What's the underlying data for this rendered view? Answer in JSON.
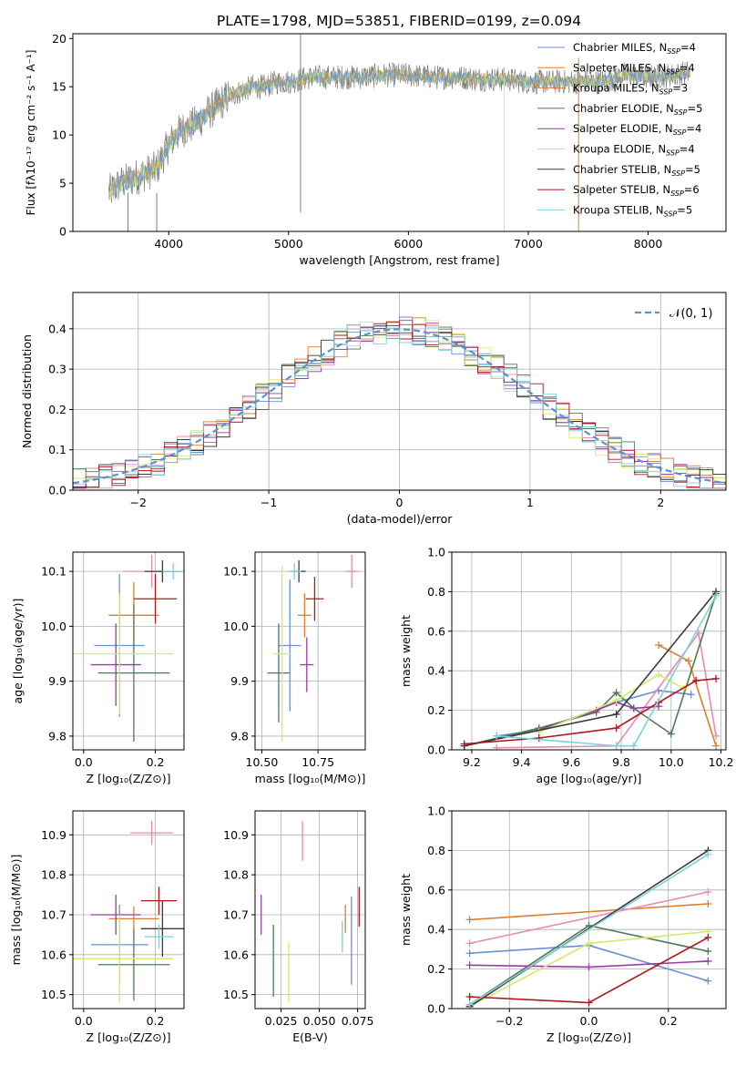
{
  "figure_title": "PLATE=1798, MJD=53851, FIBERID=0199, z=0.094",
  "colors": {
    "chabrier_miles": "#6a8fd4",
    "salpeter_miles": "#de7f2e",
    "kroupa_miles": "#e07a3f",
    "chabrier_elodie": "#4f7a55",
    "salpeter_elodie": "#9b3aa8",
    "kroupa_elodie": "#d3ea6a",
    "chabrier_stelib": "#3a3a3a",
    "salpeter_stelib": "#b0161c",
    "kroupa_stelib": "#7fd0db",
    "pink": "#e88bb5",
    "gaussian": "#5b8fd8",
    "grid": "#b0b0b0"
  },
  "chart_data": [
    {
      "id": "spectrum",
      "type": "line",
      "xlabel": "wavelength [Angstrom, rest frame]",
      "ylabel": "Flux [fλ10⁻¹⁷ erg cm⁻² s⁻¹ A⁻¹]",
      "xlim": [
        3200,
        8650
      ],
      "ylim": [
        0,
        20.5
      ],
      "xticks": [
        4000,
        5000,
        6000,
        7000,
        8000
      ],
      "yticks": [
        0,
        5,
        10,
        15,
        20
      ],
      "grid": false,
      "legend_position": "top-right",
      "legend": [
        {
          "label": "Chabrier MILES, N",
          "sub": "SSP",
          "tail": "=4",
          "color": "#6a8fd4"
        },
        {
          "label": "Salpeter MILES, N",
          "sub": "SSP",
          "tail": "=4",
          "color": "#de7f2e"
        },
        {
          "label": "Kroupa MILES, N",
          "sub": "SSP",
          "tail": "=3",
          "color": "#e07a3f"
        },
        {
          "label": "Chabrier ELODIE, N",
          "sub": "SSP",
          "tail": "=5",
          "color": "#4f7a55"
        },
        {
          "label": "Salpeter ELODIE, N",
          "sub": "SSP",
          "tail": "=4",
          "color": "#9b3aa8"
        },
        {
          "label": "Kroupa ELODIE, N",
          "sub": "SSP",
          "tail": "=4",
          "color": "#d3ea6a"
        },
        {
          "label": "Chabrier STELIB, N",
          "sub": "SSP",
          "tail": "=5",
          "color": "#3a3a3a"
        },
        {
          "label": "Salpeter STELIB, N",
          "sub": "SSP",
          "tail": "=6",
          "color": "#b0161c"
        },
        {
          "label": "Kroupa STELIB, N",
          "sub": "SSP",
          "tail": "=5",
          "color": "#7fd0db"
        }
      ],
      "continuum": {
        "x": [
          3500,
          3600,
          3700,
          3800,
          3900,
          4000,
          4100,
          4200,
          4300,
          4400,
          4500,
          4600,
          4700,
          4800,
          4900,
          5000,
          5200,
          5400,
          5600,
          5800,
          6000,
          6200,
          6400,
          6600,
          6800,
          7000,
          7200,
          7400,
          7600,
          7800,
          8000,
          8200,
          8350
        ],
        "y": [
          4,
          5,
          5.5,
          6,
          6.5,
          9,
          10.5,
          11,
          12,
          13,
          14,
          14.5,
          15,
          15,
          15.5,
          15.5,
          16,
          16,
          16,
          16.2,
          16.2,
          16,
          16,
          15.8,
          15.8,
          15.5,
          15.5,
          15.5,
          15.5,
          16.2,
          16,
          16.2,
          16.5
        ]
      },
      "spikes": [
        {
          "x": 5100,
          "y0": 2,
          "y1": 20.5
        },
        {
          "x": 3660,
          "y0": 0,
          "y1": 4
        },
        {
          "x": 3900,
          "y0": 0,
          "y1": 4
        },
        {
          "x": 6800,
          "y0": 0,
          "y1": 16
        },
        {
          "x": 7420,
          "y0": 0,
          "y1": 18
        }
      ]
    },
    {
      "id": "residuals",
      "type": "histogram",
      "xlabel": "(data-model)/error",
      "ylabel": "Normed distribution",
      "xlim": [
        -2.5,
        2.5
      ],
      "ylim": [
        0,
        0.49
      ],
      "xticks": [
        -2,
        -1,
        0,
        1,
        2
      ],
      "yticks": [
        0.0,
        0.1,
        0.2,
        0.3,
        0.4
      ],
      "grid": true,
      "legend_position": "top-right",
      "gaussian_label": "𝒩(0, 1)",
      "bin_width": 0.1
    },
    {
      "id": "age_vs_Z",
      "type": "errorbar",
      "xlabel": "Z [log₁₀(Z/Z⊙)]",
      "ylabel": "age  [log₁₀(age/yr)]",
      "xlim": [
        -0.03,
        0.28
      ],
      "ylim": [
        9.775,
        10.135
      ],
      "xticks": [
        0.0,
        0.2
      ],
      "yticks": [
        9.8,
        9.9,
        10.0,
        10.1
      ],
      "grid": true,
      "points": [
        {
          "x": 0.1,
          "xerr": 0.07,
          "y": 9.965,
          "yerr": 0.13,
          "color": "#6a8fd4"
        },
        {
          "x": 0.14,
          "xerr": 0.07,
          "y": 10.02,
          "yerr": 0.06,
          "color": "#de7f2e"
        },
        {
          "x": 0.19,
          "xerr": 0.08,
          "y": 10.1,
          "yerr": 0.03,
          "color": "#e88bb5"
        },
        {
          "x": 0.14,
          "xerr": 0.1,
          "y": 9.915,
          "yerr": 0.125,
          "color": "#4f7a55"
        },
        {
          "x": 0.09,
          "xerr": 0.07,
          "y": 9.93,
          "yerr": 0.075,
          "color": "#9b3aa8"
        },
        {
          "x": 0.1,
          "xerr": 0.15,
          "y": 9.95,
          "yerr": 0.11,
          "color": "#d3ea6a"
        },
        {
          "x": 0.22,
          "xerr": 0.05,
          "y": 10.1,
          "yerr": 0.02,
          "color": "#3a3a3a"
        },
        {
          "x": 0.2,
          "xerr": 0.06,
          "y": 10.05,
          "yerr": 0.045,
          "color": "#b0161c"
        },
        {
          "x": 0.25,
          "xerr": 0.03,
          "y": 10.1,
          "yerr": 0.015,
          "color": "#7fd0db"
        }
      ]
    },
    {
      "id": "age_vs_mass",
      "type": "errorbar",
      "xlabel": "mass [log₁₀(M/M⊙)]",
      "ylabel": "",
      "xlim": [
        10.47,
        10.96
      ],
      "ylim": [
        9.775,
        10.135
      ],
      "xticks": [
        10.5,
        10.75
      ],
      "yticks": [
        9.8,
        9.9,
        10.0,
        10.1
      ],
      "grid": true,
      "points": [
        {
          "x": 10.625,
          "xerr": 0.05,
          "y": 9.965,
          "yerr": 0.12,
          "color": "#6a8fd4"
        },
        {
          "x": 10.69,
          "xerr": 0.03,
          "y": 10.02,
          "yerr": 0.04,
          "color": "#de7f2e"
        },
        {
          "x": 10.9,
          "xerr": 0.03,
          "y": 10.1,
          "yerr": 0.03,
          "color": "#e88bb5"
        },
        {
          "x": 10.575,
          "xerr": 0.05,
          "y": 9.915,
          "yerr": 0.09,
          "color": "#4f7a55"
        },
        {
          "x": 10.7,
          "xerr": 0.03,
          "y": 9.93,
          "yerr": 0.05,
          "color": "#9b3aa8"
        },
        {
          "x": 10.59,
          "xerr": 0.04,
          "y": 9.95,
          "yerr": 0.16,
          "color": "#d3ea6a"
        },
        {
          "x": 10.665,
          "xerr": 0.03,
          "y": 10.1,
          "yerr": 0.02,
          "color": "#3a3a3a"
        },
        {
          "x": 10.735,
          "xerr": 0.04,
          "y": 10.05,
          "yerr": 0.04,
          "color": "#b0161c"
        },
        {
          "x": 10.645,
          "xerr": 0.03,
          "y": 10.1,
          "yerr": 0.015,
          "color": "#7fd0db"
        }
      ]
    },
    {
      "id": "weight_vs_age",
      "type": "line",
      "xlabel": "age  [log₁₀(age/yr)]",
      "ylabel": "mass weight",
      "xlim": [
        9.12,
        10.22
      ],
      "ylim": [
        0,
        1.0
      ],
      "xticks": [
        9.2,
        9.4,
        9.6,
        9.8,
        10.0,
        10.2
      ],
      "yticks": [
        0.0,
        0.2,
        0.4,
        0.6,
        0.8,
        1.0
      ],
      "grid": true,
      "series": [
        {
          "color": "#6a8fd4",
          "x": [
            9.3,
            9.47,
            9.78,
            9.95,
            10.08
          ],
          "y": [
            0.07,
            0.1,
            0.24,
            0.3,
            0.28
          ]
        },
        {
          "color": "#de7f2e",
          "x": [
            9.95,
            10.07,
            10.18
          ],
          "y": [
            0.53,
            0.45,
            0.02
          ]
        },
        {
          "color": "#e88bb5",
          "x": [
            9.3,
            9.78,
            10.11,
            10.18
          ],
          "y": [
            0.01,
            0.02,
            0.59,
            0.07
          ]
        },
        {
          "color": "#4f7a55",
          "x": [
            9.17,
            9.47,
            9.7,
            9.78,
            9.85,
            10.0,
            10.18
          ],
          "y": [
            0.02,
            0.11,
            0.19,
            0.29,
            0.21,
            0.08,
            0.79
          ]
        },
        {
          "color": "#9b3aa8",
          "x": [
            9.47,
            9.7,
            9.78,
            9.85,
            9.95
          ],
          "y": [
            0.1,
            0.2,
            0.24,
            0.21,
            0.22
          ]
        },
        {
          "color": "#d3ea6a",
          "x": [
            9.47,
            9.78,
            9.95,
            10.05
          ],
          "y": [
            0.09,
            0.25,
            0.38,
            0.31
          ]
        },
        {
          "color": "#3a3a3a",
          "x": [
            9.17,
            9.78,
            10.18
          ],
          "y": [
            0.02,
            0.18,
            0.8
          ]
        },
        {
          "color": "#b0161c",
          "x": [
            9.17,
            9.47,
            9.78,
            9.95,
            10.1,
            10.18
          ],
          "y": [
            0.03,
            0.06,
            0.11,
            0.24,
            0.35,
            0.36
          ]
        },
        {
          "color": "#7fd0db",
          "x": [
            9.3,
            9.78,
            9.85,
            10.18
          ],
          "y": [
            0.07,
            0.02,
            0.02,
            0.78
          ]
        }
      ]
    },
    {
      "id": "mass_vs_Z",
      "type": "errorbar",
      "xlabel": "Z [log₁₀(Z/Z⊙)]",
      "ylabel": "mass [log₁₀(M/M⊙)]",
      "xlim": [
        -0.03,
        0.28
      ],
      "ylim": [
        10.465,
        10.96
      ],
      "xticks": [
        0.0,
        0.2
      ],
      "yticks": [
        10.5,
        10.6,
        10.7,
        10.8,
        10.9
      ],
      "grid": true,
      "points": [
        {
          "x": 0.1,
          "xerr": 0.08,
          "y": 10.625,
          "yerr": 0.1,
          "color": "#6a8fd4"
        },
        {
          "x": 0.14,
          "xerr": 0.07,
          "y": 10.69,
          "yerr": 0.03,
          "color": "#de7f2e"
        },
        {
          "x": 0.19,
          "xerr": 0.06,
          "y": 10.905,
          "yerr": 0.03,
          "color": "#e88bb5"
        },
        {
          "x": 0.14,
          "xerr": 0.1,
          "y": 10.575,
          "yerr": 0.09,
          "color": "#4f7a55"
        },
        {
          "x": 0.09,
          "xerr": 0.07,
          "y": 10.7,
          "yerr": 0.05,
          "color": "#9b3aa8"
        },
        {
          "x": 0.1,
          "xerr": 0.15,
          "y": 10.59,
          "yerr": 0.11,
          "color": "#d3ea6a"
        },
        {
          "x": 0.22,
          "xerr": 0.06,
          "y": 10.665,
          "yerr": 0.07,
          "color": "#3a3a3a"
        },
        {
          "x": 0.21,
          "xerr": 0.05,
          "y": 10.735,
          "yerr": 0.035,
          "color": "#b0161c"
        },
        {
          "x": 0.21,
          "xerr": 0.04,
          "y": 10.645,
          "yerr": 0.03,
          "color": "#7fd0db"
        }
      ]
    },
    {
      "id": "mass_vs_ebv",
      "type": "errorbar",
      "xlabel": "E(B-V)",
      "ylabel": "",
      "xlim": [
        0.008,
        0.08
      ],
      "ylim": [
        10.465,
        10.96
      ],
      "xticks": [
        0.025,
        0.05,
        0.075
      ],
      "yticks": [
        10.5,
        10.6,
        10.7,
        10.8,
        10.9
      ],
      "grid": true,
      "points": [
        {
          "x": 0.071,
          "xerr": 0,
          "y": 10.635,
          "yerr": 0.11,
          "color": "#6a8fd4"
        },
        {
          "x": 0.067,
          "xerr": 0,
          "y": 10.69,
          "yerr": 0.035,
          "color": "#de7f2e"
        },
        {
          "x": 0.039,
          "xerr": 0,
          "y": 10.885,
          "yerr": 0.05,
          "color": "#e88bb5"
        },
        {
          "x": 0.02,
          "xerr": 0,
          "y": 10.585,
          "yerr": 0.09,
          "color": "#4f7a55"
        },
        {
          "x": 0.012,
          "xerr": 0,
          "y": 10.7,
          "yerr": 0.05,
          "color": "#9b3aa8"
        },
        {
          "x": 0.03,
          "xerr": 0,
          "y": 10.555,
          "yerr": 0.075,
          "color": "#d3ea6a"
        },
        {
          "x": 0.076,
          "xerr": 0,
          "y": 10.72,
          "yerr": 0.05,
          "color": "#b0161c"
        },
        {
          "x": 0.065,
          "xerr": 0,
          "y": 10.645,
          "yerr": 0.04,
          "color": "#7fd0db"
        }
      ]
    },
    {
      "id": "weight_vs_Z",
      "type": "line",
      "xlabel": "Z [log₁₀(Z/Z⊙)]",
      "ylabel": "mass weight",
      "xlim": [
        -0.345,
        0.345
      ],
      "ylim": [
        0,
        1.0
      ],
      "xticks": [
        -0.2,
        0.0,
        0.2
      ],
      "yticks": [
        0.0,
        0.2,
        0.4,
        0.6,
        0.8,
        1.0
      ],
      "grid": true,
      "series": [
        {
          "color": "#6a8fd4",
          "x": [
            -0.3,
            0.0,
            0.3
          ],
          "y": [
            0.28,
            0.32,
            0.14
          ]
        },
        {
          "color": "#de7f2e",
          "x": [
            -0.3,
            0.3
          ],
          "y": [
            0.45,
            0.53
          ]
        },
        {
          "color": "#e88bb5",
          "x": [
            -0.3,
            0.3
          ],
          "y": [
            0.33,
            0.59
          ]
        },
        {
          "color": "#4f7a55",
          "x": [
            -0.3,
            0.0,
            0.3
          ],
          "y": [
            0.02,
            0.42,
            0.29
          ]
        },
        {
          "color": "#9b3aa8",
          "x": [
            -0.3,
            0.0,
            0.3
          ],
          "y": [
            0.22,
            0.21,
            0.24
          ]
        },
        {
          "color": "#d3ea6a",
          "x": [
            -0.3,
            0.0,
            0.3
          ],
          "y": [
            0.01,
            0.33,
            0.39
          ]
        },
        {
          "color": "#3a3a3a",
          "x": [
            -0.3,
            0.3
          ],
          "y": [
            0.01,
            0.8
          ]
        },
        {
          "color": "#b0161c",
          "x": [
            -0.3,
            0.0,
            0.3
          ],
          "y": [
            0.06,
            0.03,
            0.36
          ]
        },
        {
          "color": "#7fd0db",
          "x": [
            -0.3,
            0.3
          ],
          "y": [
            0.02,
            0.78
          ]
        }
      ]
    }
  ]
}
